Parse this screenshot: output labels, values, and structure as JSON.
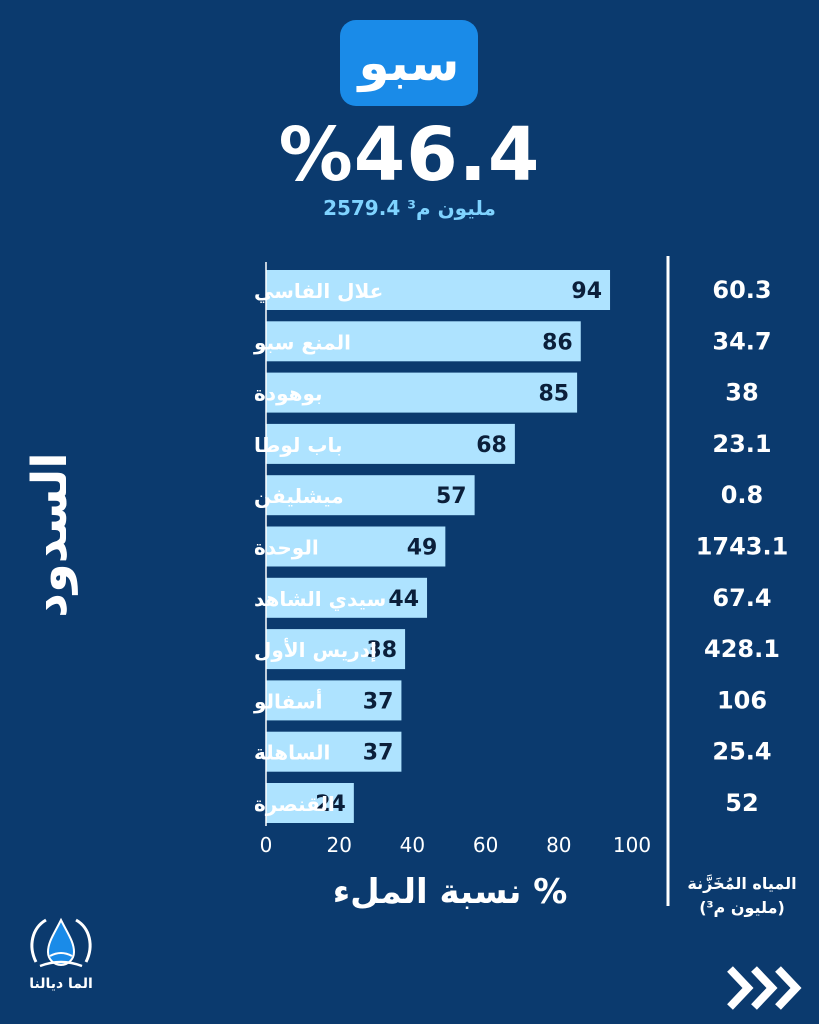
{
  "badge": "سبو",
  "headline": "%46.4",
  "subline": "2579.4 مليون م³",
  "side_title": "السدود",
  "x_title": "نسبة الملء %",
  "stored_title_line1": "المياه المُخَزَّنة",
  "stored_title_line2": "(مليون م³)",
  "logo_text": "الما ديالنا",
  "colors": {
    "background": "#0b3a6e",
    "bar": "#aee3ff",
    "badge": "#1a8be8",
    "accent": "#7fd3ff"
  },
  "icons": {
    "logo": "water-drop-hands-icon",
    "next": "triple-chevron-right-icon"
  },
  "chart_data": {
    "type": "bar",
    "orientation": "horizontal",
    "categories": [
      "علال الفاسي",
      "المنع سبو",
      "بوهودة",
      "باب لوطا",
      "ميشليفن",
      "الوحدة",
      "سيدي الشاهد",
      "إدريس الأول",
      "أسفالو",
      "الساهلة",
      "القنصرة"
    ],
    "values": [
      94,
      86,
      85,
      68,
      57,
      49,
      44,
      38,
      37,
      37,
      24
    ],
    "stored": [
      "60.3",
      "34.7",
      "38",
      "23.1",
      "0.8",
      "1743.1",
      "67.4",
      "428.1",
      "106",
      "25.4",
      "52"
    ],
    "x_ticks": [
      "0",
      "20",
      "40",
      "60",
      "80",
      "100"
    ],
    "xlim": [
      0,
      100
    ]
  }
}
